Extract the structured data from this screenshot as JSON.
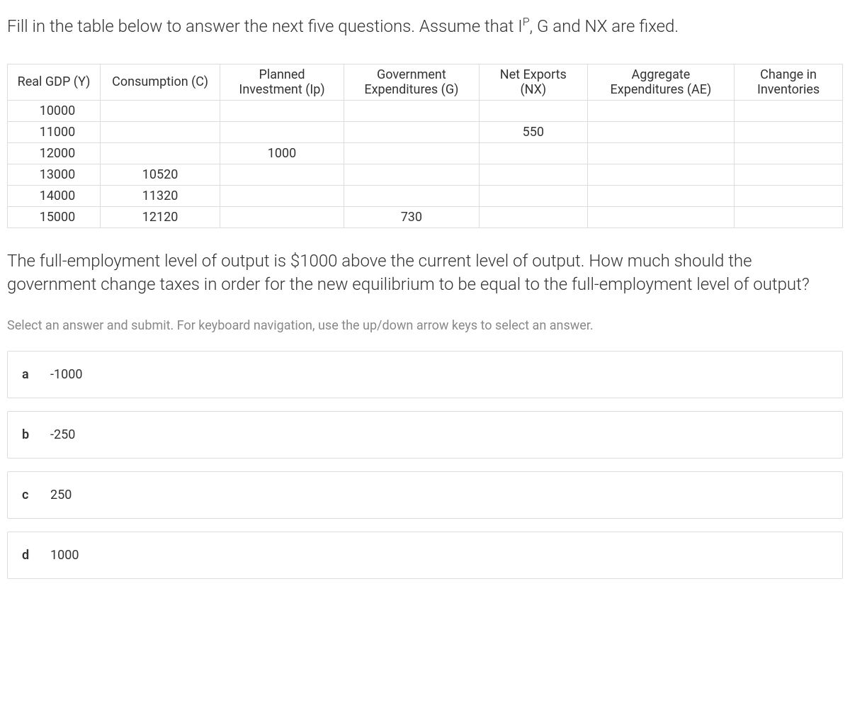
{
  "intro": {
    "prefix": "Fill in the table below to answer the next five questions. Assume that I",
    "sup": "P",
    "suffix": ", G and NX are fixed."
  },
  "table": {
    "headers": [
      "Real GDP (Y)",
      "Consumption (C)",
      "Planned Investment (Ip)",
      "Government Expenditures (G)",
      "Net Exports (NX)",
      "Aggregate Expenditures (AE)",
      "Change in Inventories"
    ],
    "rows": [
      [
        "10000",
        "",
        "",
        "",
        "",
        "",
        ""
      ],
      [
        "11000",
        "",
        "",
        "",
        "550",
        "",
        ""
      ],
      [
        "12000",
        "",
        "1000",
        "",
        "",
        "",
        ""
      ],
      [
        "13000",
        "10520",
        "",
        "",
        "",
        "",
        ""
      ],
      [
        "14000",
        "11320",
        "",
        "",
        "",
        "",
        ""
      ],
      [
        "15000",
        "12120",
        "",
        "730",
        "",
        "",
        ""
      ]
    ],
    "col_widths": [
      "120px",
      "155px",
      "160px",
      "175px",
      "140px",
      "190px",
      "140px"
    ]
  },
  "question": "The full-employment level of output is $1000 above the current level of output. How much should the government change taxes in order for the new equilibrium to be equal to the full-employment level of output?",
  "instruction": "Select an answer and submit. For keyboard navigation, use the up/down arrow keys to select an answer.",
  "options": [
    {
      "letter": "a",
      "text": "-1000"
    },
    {
      "letter": "b",
      "text": "-250"
    },
    {
      "letter": "c",
      "text": "250"
    },
    {
      "letter": "d",
      "text": "1000"
    }
  ],
  "colors": {
    "text": "#333333",
    "muted": "#888888",
    "border": "#dddddd",
    "background": "#ffffff"
  }
}
